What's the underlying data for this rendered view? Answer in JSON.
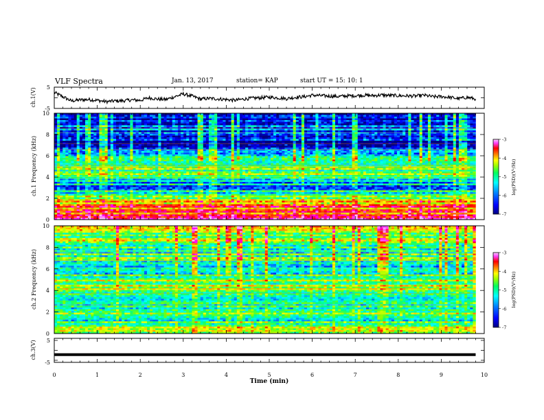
{
  "header": {
    "title": "VLF Spectra",
    "date": "Jan. 13, 2017",
    "station": "station= KAP",
    "start_time": "start  UT =   15: 10: 1"
  },
  "chart_data": [
    {
      "type": "line",
      "panel": "ch1-waveform",
      "ylabel": "ch.1(V)",
      "yticks": [
        "5",
        "-5"
      ],
      "ylim": [
        -5,
        5
      ],
      "x": [
        0,
        0.2,
        0.4,
        0.6,
        0.8,
        1.0,
        1.2,
        1.4,
        1.6,
        1.8,
        2.0,
        2.2,
        2.4,
        2.6,
        2.8,
        3.0,
        3.2,
        3.4,
        3.6,
        3.8,
        4.0,
        4.2,
        4.4,
        4.6,
        4.8,
        5.0,
        5.2,
        5.4,
        5.6,
        5.8,
        6.0,
        6.2,
        6.4,
        6.6,
        6.8,
        7.0,
        7.2,
        7.4,
        7.6,
        7.8,
        8.0,
        8.2,
        8.4,
        8.6,
        8.8,
        9.0,
        9.2,
        9.4,
        9.6,
        9.8
      ],
      "y": [
        2.5,
        0.5,
        -1.5,
        -1.0,
        -0.8,
        -1.2,
        -1.8,
        -1.5,
        -1.4,
        -1.0,
        -1.2,
        0.0,
        -0.6,
        -0.8,
        0.5,
        1.8,
        0.8,
        -0.6,
        -0.3,
        -0.5,
        -0.8,
        -1.2,
        -0.6,
        -0.2,
        0.0,
        0.3,
        0.0,
        -0.4,
        0.2,
        0.5,
        1.2,
        1.0,
        0.8,
        0.6,
        0.9,
        1.0,
        1.2,
        1.0,
        1.3,
        1.1,
        1.0,
        0.9,
        0.8,
        1.2,
        0.5,
        0.6,
        0.2,
        -0.4,
        0.2,
        -0.5
      ]
    },
    {
      "type": "heatmap",
      "panel": "ch1-spectrogram",
      "ylabel": "ch.1  Frequency  (kHz)",
      "yticks": [
        "0",
        "2",
        "4",
        "6",
        "8",
        "10"
      ],
      "ylim": [
        0,
        10
      ],
      "colorbar": {
        "label": "log(PSD)(V²/Hz)",
        "ticks": [
          "-3",
          "-4",
          "-5",
          "-6",
          "-7"
        ],
        "range": [
          -7,
          -3
        ]
      },
      "band_levels": [
        {
          "khz": 0.5,
          "log_psd": -3.8
        },
        {
          "khz": 1.0,
          "log_psd": -4.0
        },
        {
          "khz": 2.0,
          "log_psd": -4.8
        },
        {
          "khz": 3.0,
          "log_psd": -6.2
        },
        {
          "khz": 4.0,
          "log_psd": -5.4
        },
        {
          "khz": 5.0,
          "log_psd": -5.2
        },
        {
          "khz": 6.0,
          "log_psd": -5.6
        },
        {
          "khz": 7.0,
          "log_psd": -6.8
        },
        {
          "khz": 8.0,
          "log_psd": -6.3
        },
        {
          "khz": 9.0,
          "log_psd": -6.4
        },
        {
          "khz": 10.0,
          "log_psd": -6.5
        }
      ]
    },
    {
      "type": "heatmap",
      "panel": "ch2-spectrogram",
      "ylabel": "ch.2  Frequency  (kHz)",
      "yticks": [
        "0",
        "2",
        "4",
        "6",
        "8",
        "10"
      ],
      "ylim": [
        0,
        10
      ],
      "colorbar": {
        "label": "log(PSD)(V²/Hz)",
        "ticks": [
          "-3",
          "-4",
          "-5",
          "-6",
          "-7"
        ],
        "range": [
          -7,
          -3
        ]
      },
      "band_levels": [
        {
          "khz": 0.5,
          "log_psd": -4.8
        },
        {
          "khz": 1.0,
          "log_psd": -5.4
        },
        {
          "khz": 2.0,
          "log_psd": -5.3
        },
        {
          "khz": 3.0,
          "log_psd": -5.8
        },
        {
          "khz": 4.0,
          "log_psd": -5.2
        },
        {
          "khz": 5.0,
          "log_psd": -5.2
        },
        {
          "khz": 6.0,
          "log_psd": -5.6
        },
        {
          "khz": 7.0,
          "log_psd": -5.3
        },
        {
          "khz": 8.0,
          "log_psd": -5.3
        },
        {
          "khz": 9.0,
          "log_psd": -5.0
        },
        {
          "khz": 10.0,
          "log_psd": -5.0
        }
      ]
    },
    {
      "type": "line",
      "panel": "ch3-waveform",
      "ylabel": "ch.3(V)",
      "yticks": [
        "5",
        "-5"
      ],
      "ylim": [
        -5,
        5
      ],
      "x": [
        0,
        9.8
      ],
      "y": [
        -1.8,
        -1.8
      ]
    }
  ],
  "time_axis": {
    "label": "Time  (min)",
    "ticks": [
      "0",
      "1",
      "2",
      "3",
      "4",
      "5",
      "6",
      "7",
      "8",
      "9",
      "10"
    ],
    "xlim": [
      0,
      10
    ]
  },
  "colors": {
    "colormap": [
      "#000080",
      "#0000ff",
      "#0080ff",
      "#00ffff",
      "#00ff80",
      "#80ff00",
      "#ffff00",
      "#ff8000",
      "#ff0000",
      "#ff00ff",
      "#ffc0ff"
    ]
  }
}
